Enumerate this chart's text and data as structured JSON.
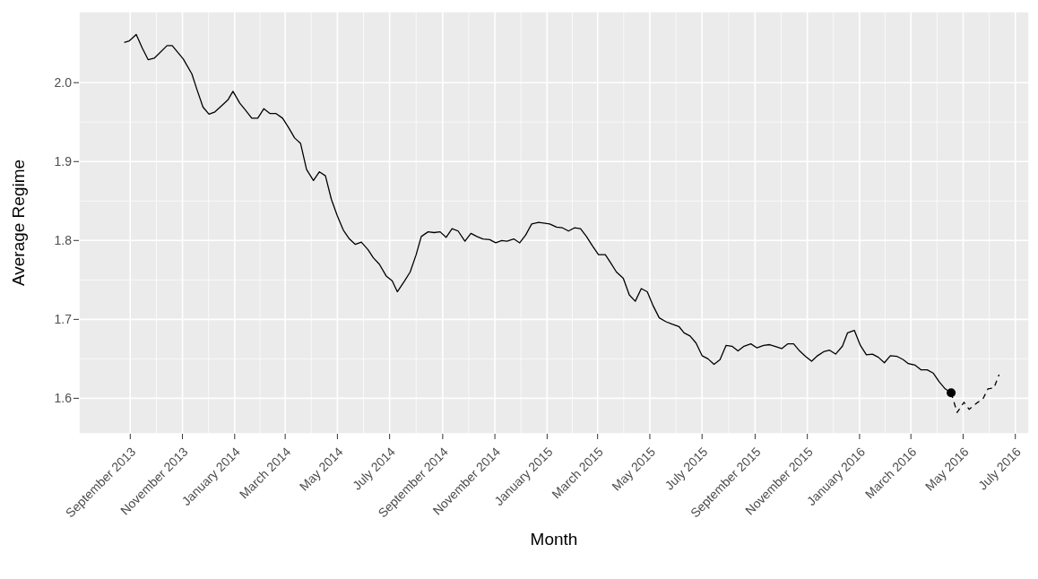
{
  "chart_data": {
    "type": "line",
    "xlabel": "Month",
    "ylabel": "Average Regime",
    "xlim": [
      "2013-07-03",
      "2016-07-17"
    ],
    "xticks": [
      {
        "value": "2013-09-01",
        "label": "September 2013"
      },
      {
        "value": "2013-11-01",
        "label": "November 2013"
      },
      {
        "value": "2014-01-01",
        "label": "January 2014"
      },
      {
        "value": "2014-03-01",
        "label": "March 2014"
      },
      {
        "value": "2014-05-01",
        "label": "May 2014"
      },
      {
        "value": "2014-07-01",
        "label": "July 2014"
      },
      {
        "value": "2014-09-01",
        "label": "September 2014"
      },
      {
        "value": "2014-11-01",
        "label": "November 2014"
      },
      {
        "value": "2015-01-01",
        "label": "January 2015"
      },
      {
        "value": "2015-03-01",
        "label": "March 2015"
      },
      {
        "value": "2015-05-01",
        "label": "May 2015"
      },
      {
        "value": "2015-07-01",
        "label": "July 2015"
      },
      {
        "value": "2015-09-01",
        "label": "September 2015"
      },
      {
        "value": "2015-11-01",
        "label": "November 2015"
      },
      {
        "value": "2016-01-01",
        "label": "January 2016"
      },
      {
        "value": "2016-03-01",
        "label": "March 2016"
      },
      {
        "value": "2016-05-01",
        "label": "May 2016"
      },
      {
        "value": "2016-07-01",
        "label": "July 2016"
      }
    ],
    "ylim": [
      1.555,
      2.09
    ],
    "yticks": [
      1.6,
      1.7,
      1.8,
      1.9,
      {
        "value": 2,
        "label": "2.0"
      }
    ],
    "grid": true,
    "series": [
      {
        "color": "#000000",
        "line_style": "solid",
        "x": [
          "2013-08-25",
          "2013-08-31",
          "2013-09-08",
          "2013-09-15",
          "2013-09-22",
          "2013-09-29",
          "2013-10-14",
          "2013-10-20",
          "2013-11-02",
          "2013-11-12",
          "2013-11-18",
          "2013-11-25",
          "2013-12-02",
          "2013-12-09",
          "2013-12-17",
          "2013-12-24",
          "2013-12-30",
          "2014-01-07",
          "2014-01-13",
          "2014-01-21",
          "2014-01-28",
          "2014-02-04",
          "2014-02-11",
          "2014-02-18",
          "2014-02-26",
          "2014-03-05",
          "2014-03-12",
          "2014-03-19",
          "2014-03-26",
          "2014-04-03",
          "2014-04-10",
          "2014-04-17",
          "2014-04-24",
          "2014-05-01",
          "2014-05-08",
          "2014-05-15",
          "2014-05-22",
          "2014-05-29",
          "2014-06-06",
          "2014-06-12",
          "2014-06-19",
          "2014-06-27",
          "2014-07-04",
          "2014-07-10",
          "2014-07-18",
          "2014-07-25",
          "2014-08-01",
          "2014-08-07",
          "2014-08-15",
          "2014-08-22",
          "2014-08-29",
          "2014-09-05",
          "2014-09-12",
          "2014-09-19",
          "2014-09-27",
          "2014-10-04",
          "2014-10-11",
          "2014-10-18",
          "2014-10-26",
          "2014-11-02",
          "2014-11-09",
          "2014-11-15",
          "2014-11-23",
          "2014-11-30",
          "2014-12-07",
          "2014-12-14",
          "2014-12-22",
          "2014-12-28",
          "2015-01-04",
          "2015-01-12",
          "2015-01-19",
          "2015-01-26",
          "2015-02-02",
          "2015-02-09",
          "2015-02-16",
          "2015-02-23",
          "2015-03-02",
          "2015-03-10",
          "2015-03-16",
          "2015-03-23",
          "2015-03-31",
          "2015-04-07",
          "2015-04-14",
          "2015-04-21",
          "2015-04-28",
          "2015-05-05",
          "2015-05-12",
          "2015-05-20",
          "2015-05-27",
          "2015-06-04",
          "2015-06-10",
          "2015-06-17",
          "2015-06-24",
          "2015-07-01",
          "2015-07-08",
          "2015-07-15",
          "2015-07-22",
          "2015-07-29",
          "2015-08-05",
          "2015-08-12",
          "2015-08-19",
          "2015-08-27",
          "2015-09-03",
          "2015-09-11",
          "2015-09-18",
          "2015-09-24",
          "2015-10-02",
          "2015-10-09",
          "2015-10-16",
          "2015-10-23",
          "2015-10-30",
          "2015-11-06",
          "2015-11-13",
          "2015-11-20",
          "2015-11-27",
          "2015-12-04",
          "2015-12-12",
          "2015-12-18",
          "2015-12-26",
          "2016-01-02",
          "2016-01-09",
          "2016-01-16",
          "2016-01-23",
          "2016-01-30",
          "2016-02-06",
          "2016-02-14",
          "2016-02-21",
          "2016-02-27",
          "2016-03-06",
          "2016-03-13",
          "2016-03-20",
          "2016-03-27",
          "2016-04-03",
          "2016-04-10",
          "2016-04-17"
        ],
        "values": [
          2.051,
          2.053,
          2.061,
          2.044,
          2.029,
          2.031,
          2.047,
          2.047,
          2.03,
          2.011,
          1.991,
          1.969,
          1.96,
          1.963,
          1.971,
          1.978,
          1.989,
          1.974,
          1.966,
          1.955,
          1.955,
          1.967,
          1.961,
          1.961,
          1.955,
          1.943,
          1.93,
          1.923,
          1.89,
          1.876,
          1.887,
          1.882,
          1.852,
          1.831,
          1.813,
          1.802,
          1.795,
          1.798,
          1.788,
          1.778,
          1.77,
          1.755,
          1.749,
          1.735,
          1.748,
          1.76,
          1.782,
          1.805,
          1.811,
          1.81,
          1.811,
          1.804,
          1.815,
          1.812,
          1.799,
          1.809,
          1.805,
          1.802,
          1.801,
          1.797,
          1.8,
          1.799,
          1.802,
          1.797,
          1.807,
          1.821,
          1.823,
          1.822,
          1.821,
          1.817,
          1.816,
          1.812,
          1.816,
          1.815,
          1.805,
          1.793,
          1.782,
          1.782,
          1.772,
          1.76,
          1.752,
          1.731,
          1.723,
          1.739,
          1.735,
          1.717,
          1.702,
          1.697,
          1.694,
          1.691,
          1.683,
          1.679,
          1.67,
          1.654,
          1.65,
          1.643,
          1.649,
          1.667,
          1.666,
          1.66,
          1.666,
          1.669,
          1.664,
          1.667,
          1.668,
          1.666,
          1.663,
          1.669,
          1.669,
          1.66,
          1.653,
          1.647,
          1.654,
          1.659,
          1.661,
          1.656,
          1.666,
          1.683,
          1.686,
          1.667,
          1.655,
          1.656,
          1.652,
          1.645,
          1.654,
          1.653,
          1.649,
          1.644,
          1.642,
          1.636,
          1.636,
          1.632,
          1.621,
          1.612,
          1.607
        ]
      },
      {
        "color": "#000000",
        "line_style": "dashed",
        "x": [
          "2016-04-17",
          "2016-04-24",
          "2016-05-02",
          "2016-05-08",
          "2016-05-17",
          "2016-05-24",
          "2016-05-30",
          "2016-06-06",
          "2016-06-12"
        ],
        "values": [
          1.607,
          1.582,
          1.595,
          1.586,
          1.594,
          1.599,
          1.612,
          1.613,
          1.63
        ]
      },
      {
        "type": "scatter",
        "color": "#000000",
        "marker": "circle",
        "x": [
          "2016-04-17"
        ],
        "values": [
          1.607
        ]
      }
    ]
  }
}
